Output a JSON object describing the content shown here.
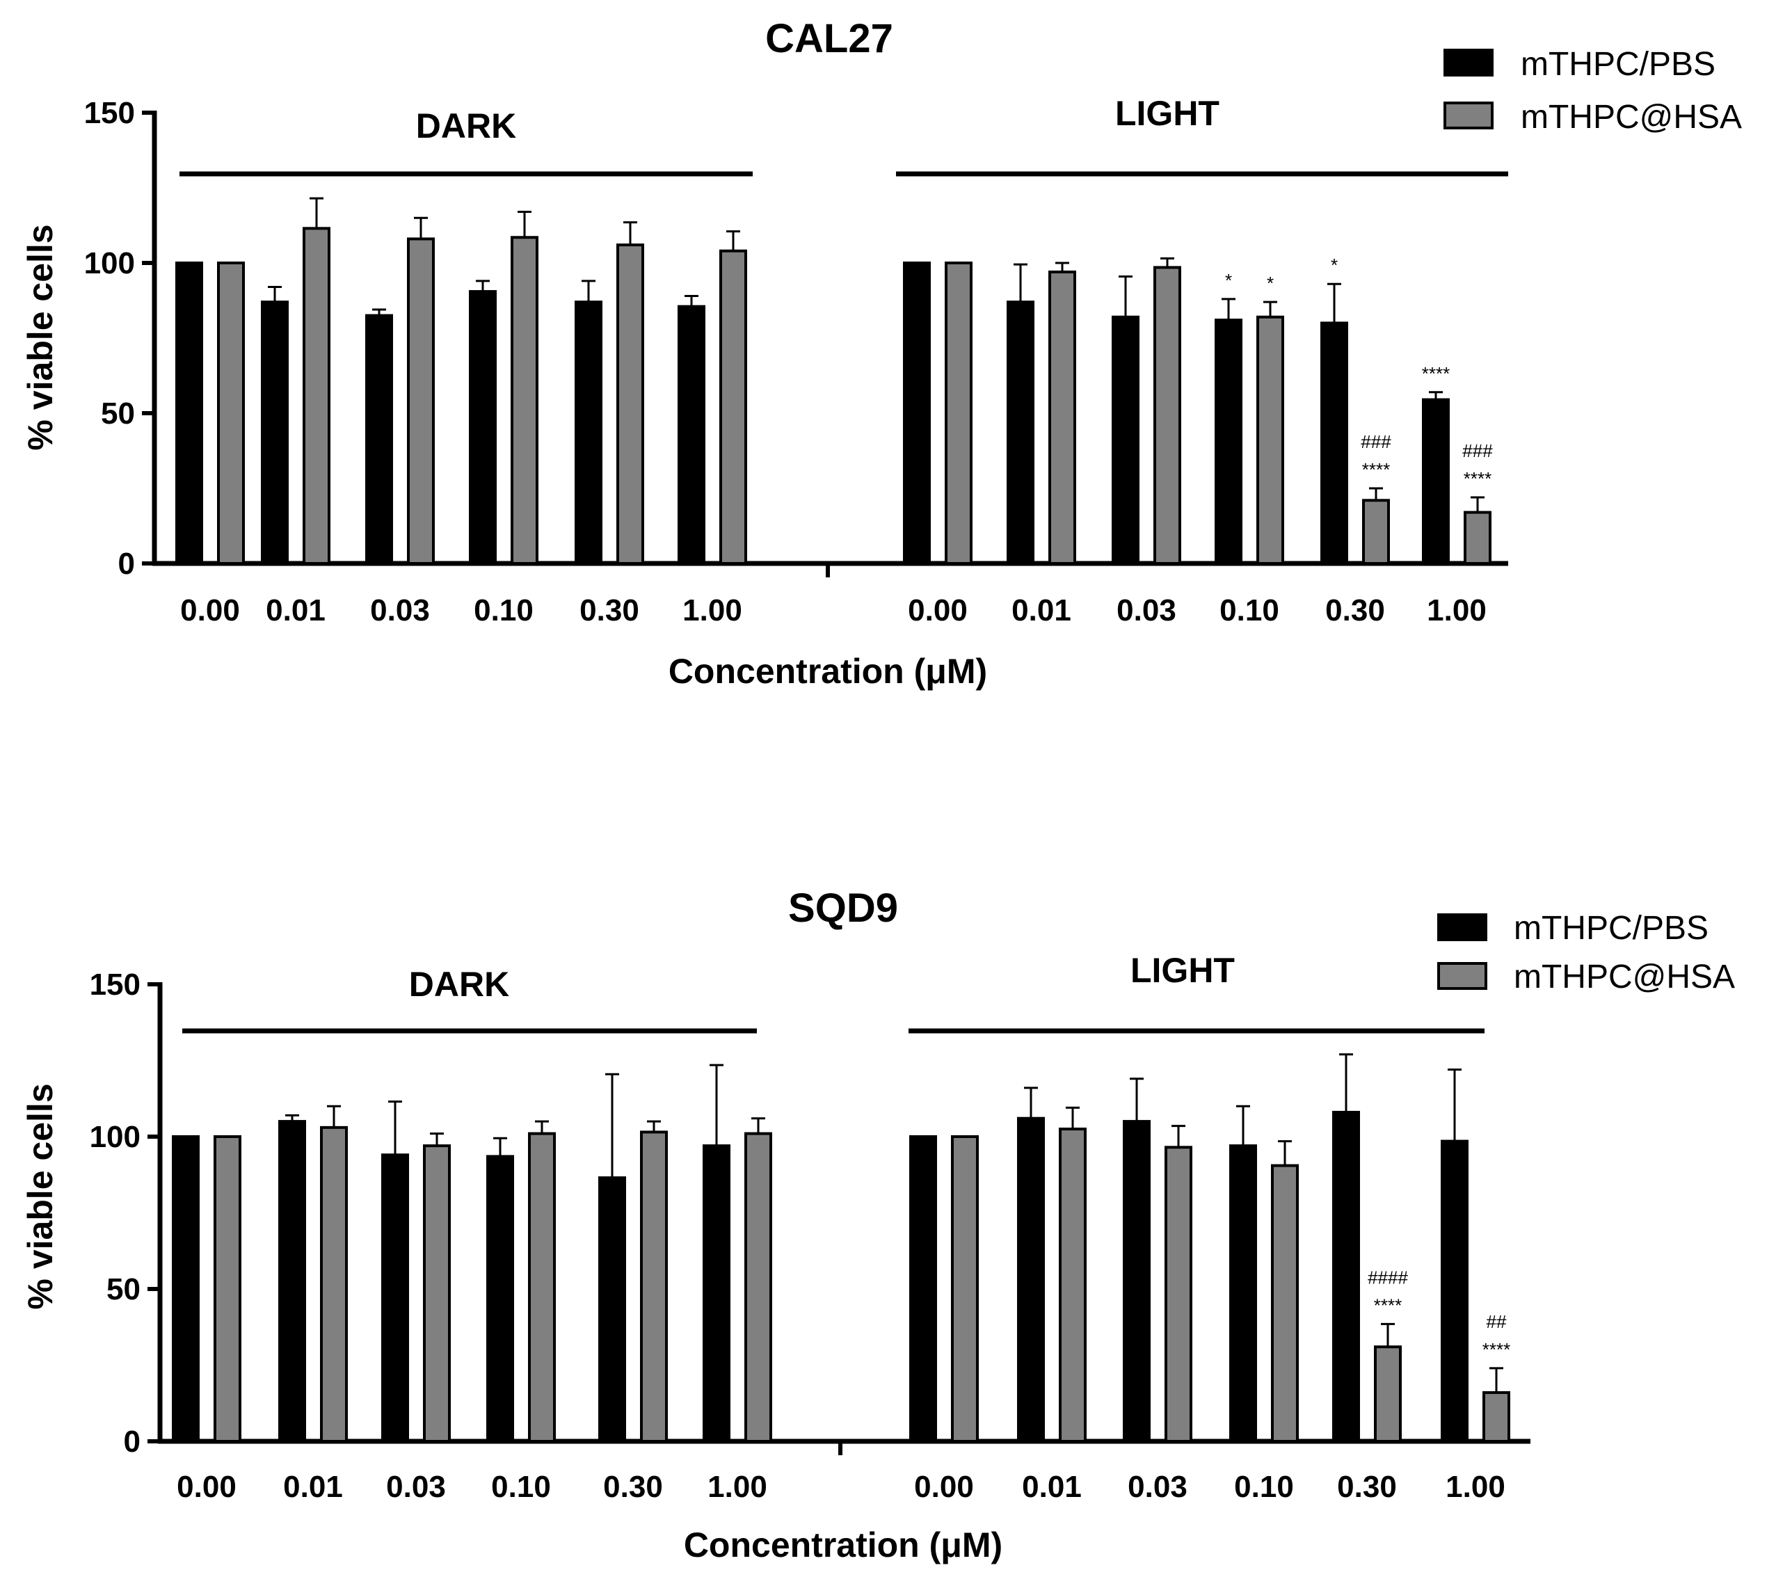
{
  "chart_data": [
    {
      "type": "bar",
      "title": "CAL27",
      "xlabel": "Concentration (μM)",
      "ylabel": "% viable cells",
      "ylim": [
        0,
        150
      ],
      "yticks": [
        0,
        50,
        100,
        150
      ],
      "groups": [
        {
          "label": "DARK",
          "categories": [
            "0.00",
            "0.01",
            "0.03",
            "0.10",
            "0.30",
            "1.00"
          ]
        },
        {
          "label": "LIGHT",
          "categories": [
            "0.00",
            "0.01",
            "0.03",
            "0.10",
            "0.30",
            "1.00"
          ]
        }
      ],
      "series": [
        {
          "name": "mTHPC/PBS",
          "color": "#000000",
          "values": [
            100,
            87,
            82.5,
            90.5,
            87,
            85.5,
            100,
            87,
            82,
            81,
            80,
            54.5
          ],
          "errors": [
            0,
            5,
            2,
            3.5,
            7,
            3.5,
            0,
            12.5,
            13.5,
            7,
            13,
            2.5
          ]
        },
        {
          "name": "mTHPC@HSA",
          "color": "#808080",
          "values": [
            100,
            111.5,
            108,
            108.5,
            106,
            104,
            100,
            97,
            98.5,
            82,
            21,
            17
          ],
          "errors": [
            0,
            10,
            7,
            8.5,
            7.5,
            6.5,
            0,
            3,
            3,
            5,
            4,
            5
          ]
        }
      ],
      "annotations": [
        {
          "group": 1,
          "category": 3,
          "series": 0,
          "lines": [
            "*"
          ]
        },
        {
          "group": 1,
          "category": 3,
          "series": 1,
          "lines": [
            "*"
          ]
        },
        {
          "group": 1,
          "category": 4,
          "series": 0,
          "lines": [
            "*"
          ]
        },
        {
          "group": 1,
          "category": 4,
          "series": 1,
          "lines": [
            "###",
            "****"
          ]
        },
        {
          "group": 1,
          "category": 5,
          "series": 0,
          "lines": [
            "****"
          ]
        },
        {
          "group": 1,
          "category": 5,
          "series": 1,
          "lines": [
            "###",
            "****"
          ]
        }
      ],
      "legend": "top-right"
    },
    {
      "type": "bar",
      "title": "SQD9",
      "xlabel": "Concentration (μM)",
      "ylabel": "% viable cells",
      "ylim": [
        0,
        150
      ],
      "yticks": [
        0,
        50,
        100,
        150
      ],
      "groups": [
        {
          "label": "DARK",
          "categories": [
            "0.00",
            "0.01",
            "0.03",
            "0.10",
            "0.30",
            "1.00"
          ]
        },
        {
          "label": "LIGHT",
          "categories": [
            "0.00",
            "0.01",
            "0.03",
            "0.10",
            "0.30",
            "1.00"
          ]
        }
      ],
      "series": [
        {
          "name": "mTHPC/PBS",
          "color": "#000000",
          "values": [
            100,
            105,
            94,
            93.5,
            86.5,
            97,
            100,
            106,
            105,
            97,
            108,
            98.5
          ],
          "errors": [
            0,
            2,
            17.5,
            6,
            34,
            26.5,
            0,
            10,
            14,
            13,
            19,
            23.5
          ]
        },
        {
          "name": "mTHPC@HSA",
          "color": "#808080",
          "values": [
            100,
            103,
            97,
            101,
            101.5,
            101,
            100,
            102.5,
            96.5,
            90.5,
            31,
            16
          ],
          "errors": [
            0,
            7,
            4,
            4,
            3.5,
            5,
            0,
            7,
            7,
            8,
            7.5,
            8
          ]
        }
      ],
      "annotations": [
        {
          "group": 1,
          "category": 4,
          "series": 1,
          "lines": [
            "####",
            "****"
          ]
        },
        {
          "group": 1,
          "category": 5,
          "series": 1,
          "lines": [
            "##",
            "****"
          ]
        }
      ],
      "legend": "top-right"
    }
  ]
}
